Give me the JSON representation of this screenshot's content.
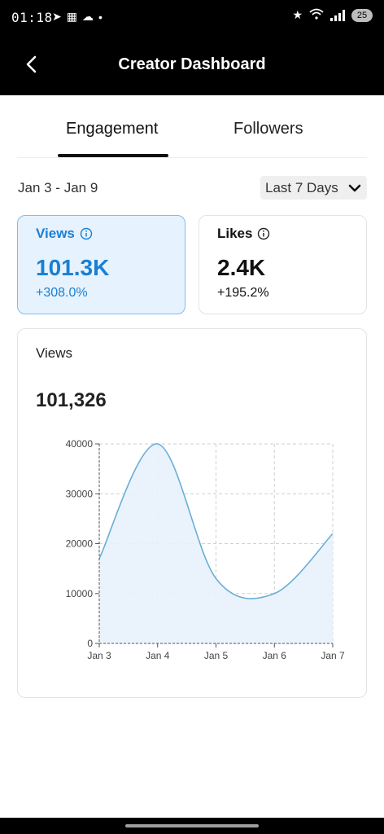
{
  "status_bar": {
    "time": "01:18",
    "battery": "25"
  },
  "header": {
    "title": "Creator Dashboard"
  },
  "tabs": [
    {
      "label": "Engagement",
      "active": true
    },
    {
      "label": "Followers",
      "active": false
    }
  ],
  "date_range": "Jan 3 - Jan 9",
  "range_select": {
    "value": "Last 7 Days"
  },
  "metrics": {
    "views": {
      "label": "Views",
      "value": "101.3K",
      "change": "+308.0%",
      "selected": true
    },
    "likes": {
      "label": "Likes",
      "value": "2.4K",
      "change": "+195.2%",
      "selected": false
    }
  },
  "chart_card": {
    "title": "Views",
    "total": "101,326"
  },
  "chart_data": {
    "type": "area",
    "x": [
      "Jan 3",
      "Jan 4",
      "Jan 5",
      "Jan 6",
      "Jan 7"
    ],
    "series": [
      {
        "values": [
          17000,
          40000,
          13000,
          10000,
          22000
        ]
      }
    ],
    "ylim": [
      0,
      40000
    ],
    "yticks": [
      0,
      10000,
      20000,
      30000,
      40000
    ],
    "ytick_labels": [
      "0",
      "10000",
      "20000",
      "30000",
      "40000"
    ],
    "grid": true,
    "line_color": "#6aaed6",
    "fill_color": "#e8f2fc"
  },
  "colors": {
    "accent": "#1a7fd4",
    "accent_bg": "#e6f2fd"
  }
}
